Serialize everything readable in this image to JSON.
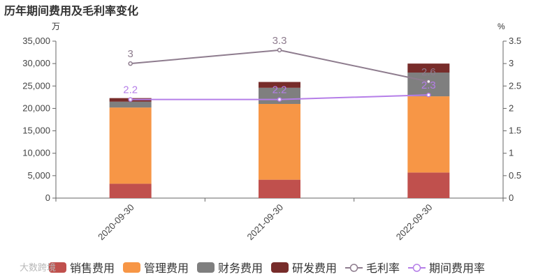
{
  "chart_data": {
    "type": "bar",
    "title": "历年期间费用及毛利率变化",
    "left_unit": "万",
    "right_unit": "%",
    "categories": [
      "2020-09-30",
      "2021-09-30",
      "2022-09-30"
    ],
    "ylim": [
      0,
      35000
    ],
    "y_ticks": [
      "0",
      "5,000",
      "10,000",
      "15,000",
      "20,000",
      "25,000",
      "30,000",
      "35,000"
    ],
    "y2lim": [
      0,
      3.5
    ],
    "y2_ticks": [
      "0",
      "0.5",
      "1",
      "1.5",
      "2",
      "2.5",
      "3",
      "3.5"
    ],
    "stacked": true,
    "series": [
      {
        "name": "销售费用",
        "kind": "bar",
        "color": "#c0504d",
        "values": [
          3200,
          4100,
          5700
        ]
      },
      {
        "name": "管理费用",
        "kind": "bar",
        "color": "#f79646",
        "values": [
          17000,
          16900,
          17000
        ]
      },
      {
        "name": "财务费用",
        "kind": "bar",
        "color": "#7f7f7f",
        "values": [
          1300,
          3600,
          5300
        ]
      },
      {
        "name": "研发费用",
        "kind": "bar",
        "color": "#772c2a",
        "values": [
          800,
          1300,
          2000
        ]
      },
      {
        "name": "毛利率",
        "kind": "line",
        "axis": "right",
        "color": "#8e7c8e",
        "values": [
          3,
          3.3,
          2.6
        ],
        "labels": [
          "3",
          "3.3",
          "2.6"
        ]
      },
      {
        "name": "期间费用率",
        "kind": "line",
        "axis": "right",
        "color": "#b57ee8",
        "values": [
          2.2,
          2.2,
          2.3
        ],
        "labels": [
          "2.2",
          "2.2",
          "2.3"
        ]
      }
    ],
    "grid": false,
    "legend_position": "bottom"
  },
  "watermark": "大数跨境"
}
